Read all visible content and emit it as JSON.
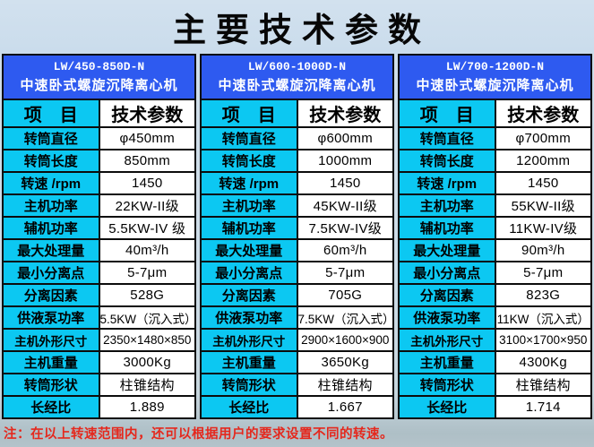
{
  "title": "主要技术参数",
  "note": "注：在以上转速范围内，还可以根据用户的要求设置不同的转速。",
  "colors": {
    "title_background": "#cadcec",
    "model_header_background": "#2e5af0",
    "model_header_text": "#ffffff",
    "item_cell_background": "#0cc8f2",
    "value_cell_background": "#ffffff",
    "table_border": "#0c0c0c",
    "note_text": "#e5281d",
    "page_background": "#c9d8e2"
  },
  "column_headers": {
    "item": "项　目",
    "value": "技术参数"
  },
  "row_labels": [
    "转筒直径",
    "转筒长度",
    "转速 /rpm",
    "主机功率",
    "辅机功率",
    "最大处理量",
    "最小分离点",
    "分离因素",
    "供液泵功率",
    "主机外形尺寸",
    "主机重量",
    "转筒形状",
    "长经比"
  ],
  "tables": [
    {
      "model": "LW/450-850D-N",
      "model_desc": "中速卧式螺旋沉降离心机",
      "values": [
        "φ450mm",
        "850mm",
        "1450",
        "22KW-II级",
        "5.5KW-IV 级",
        "40m³/h",
        "5-7μm",
        "528G",
        "5.5KW（沉入式）",
        "2350×1480×850",
        "3000Kg",
        "柱锥结构",
        "1.889"
      ]
    },
    {
      "model": "LW/600-1000D-N",
      "model_desc": "中速卧式螺旋沉降离心机",
      "values": [
        "φ600mm",
        "1000mm",
        "1450",
        "45KW-II级",
        "7.5KW-IV级",
        "60m³/h",
        "5-7μm",
        "705G",
        "7.5KW（沉入式）",
        "2900×1600×900",
        "3650Kg",
        "柱锥结构",
        "1.667"
      ]
    },
    {
      "model": "LW/700-1200D-N",
      "model_desc": "中速卧式螺旋沉降离心机",
      "values": [
        "φ700mm",
        "1200mm",
        "1450",
        "55KW-II级",
        "11KW-IV级",
        "90m³/h",
        "5-7μm",
        "823G",
        "11KW（沉入式）",
        "3100×1700×950",
        "4300Kg",
        "柱锥结构",
        "1.714"
      ]
    }
  ]
}
